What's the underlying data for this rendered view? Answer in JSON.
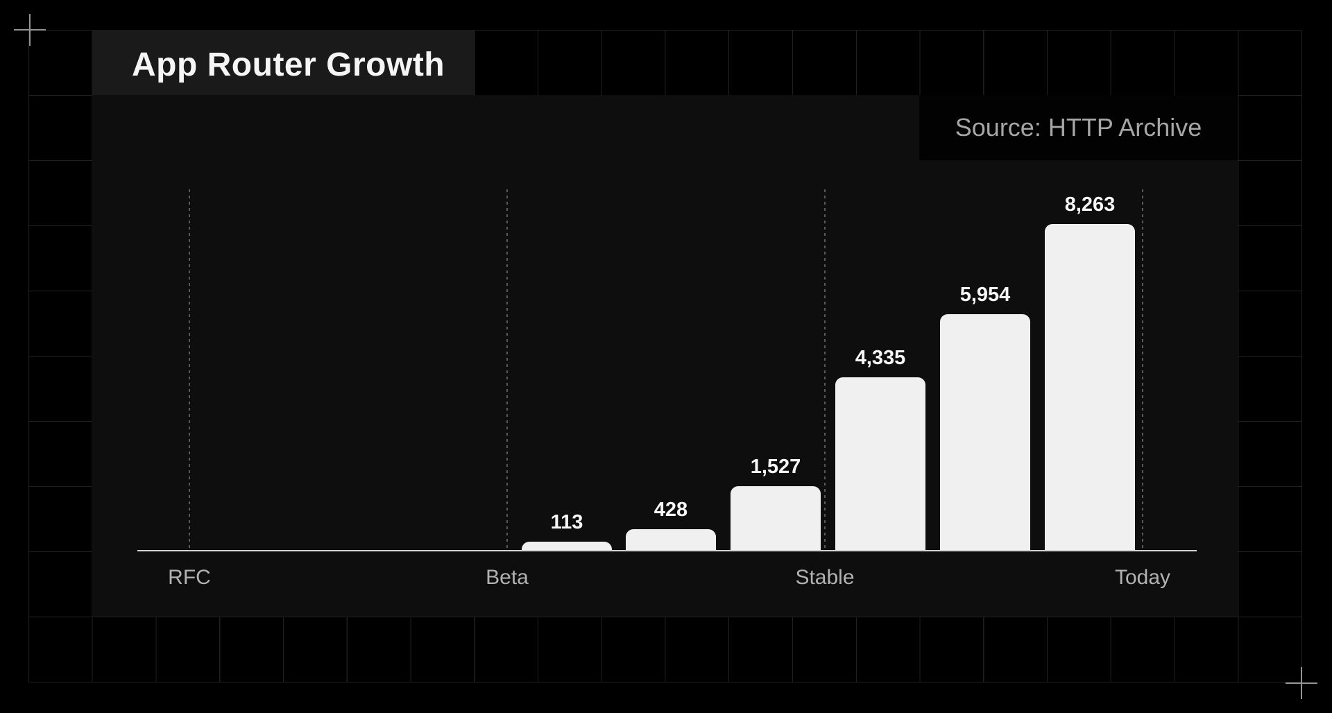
{
  "chart_data": {
    "type": "bar",
    "title": "App Router Growth",
    "source_label": "Source: HTTP Archive",
    "x_tick_labels": [
      "RFC",
      "Beta",
      "Stable",
      "Today"
    ],
    "bars": [
      {
        "label": "113",
        "value": 113,
        "segment": "Beta-Stable"
      },
      {
        "label": "428",
        "value": 428,
        "segment": "Beta-Stable"
      },
      {
        "label": "1,527",
        "value": 1527,
        "segment": "Beta-Stable"
      },
      {
        "label": "4,335",
        "value": 4335,
        "segment": "Stable-Today"
      },
      {
        "label": "5,954",
        "value": 5954,
        "segment": "Stable-Today"
      },
      {
        "label": "8,263",
        "value": 8263,
        "segment": "Stable-Today"
      }
    ],
    "ylim": [
      0,
      8263
    ],
    "y_axis": "hidden",
    "legend": "none",
    "gridlines": "dashed vertical line at each milestone tick; graph-paper grid on page background"
  },
  "colors": {
    "page_background": "#000000",
    "graph_paper_line": "#212121",
    "panel_background": "#0e0e0e",
    "title_box_background": "#1a1a1a",
    "source_box_background": "#020202",
    "bar_fill": "#f0f0f0",
    "axis_line": "#d5d5d5",
    "dashed_gridline": "#5a5a5a",
    "title_text": "#f5f5f5",
    "source_text": "#a6a6a6",
    "tick_text": "#b2b2b2",
    "value_label_text": "#f7f7f7",
    "crosshair": "#949494"
  }
}
